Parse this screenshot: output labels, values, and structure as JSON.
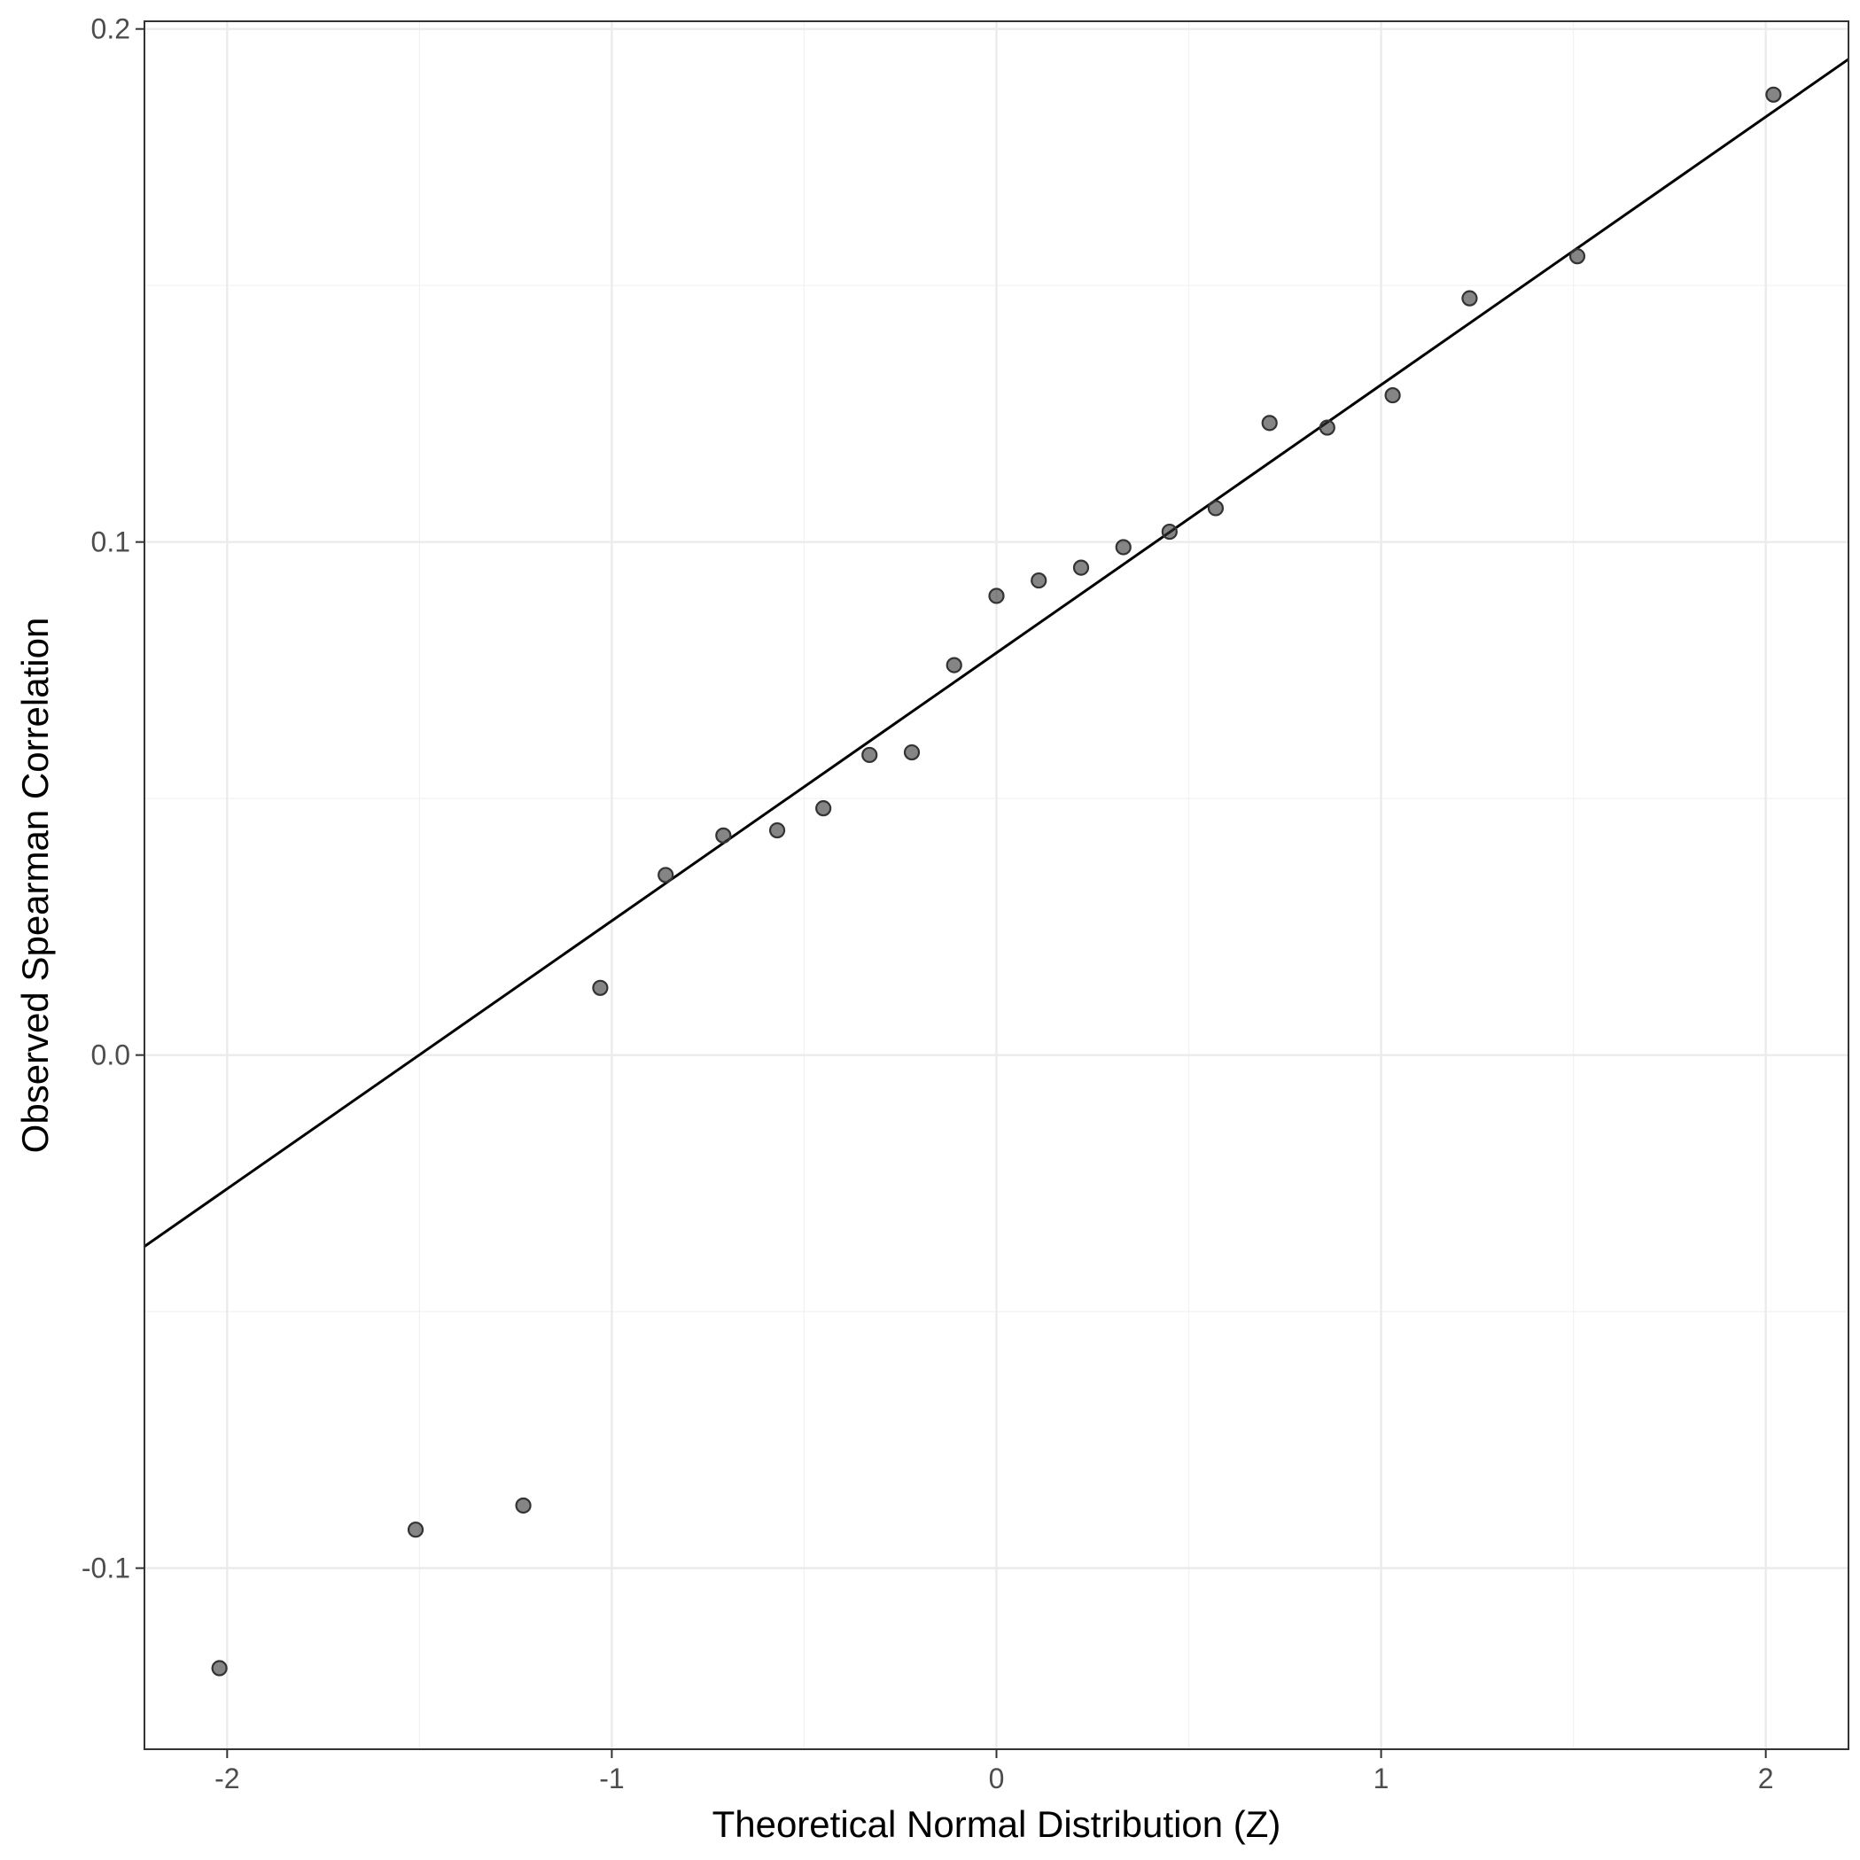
{
  "chart_data": {
    "type": "scatter",
    "xlabel": "Theoretical Normal Distribution (Z)",
    "ylabel": "Observed Spearman Correlation",
    "xlim": [
      -2.215,
      2.215
    ],
    "ylim": [
      -0.1353,
      0.2015
    ],
    "x_ticks": [
      -2,
      -1,
      0,
      1,
      2
    ],
    "x_tick_labels": [
      "-2",
      "-1",
      "0",
      "1",
      "2"
    ],
    "y_ticks": [
      -0.1,
      0.0,
      0.1,
      0.2
    ],
    "y_tick_labels": [
      "-0.1",
      "0.0",
      "0.1",
      "0.2"
    ],
    "x_minor_ticks": [
      -1.5,
      -0.5,
      0.5,
      1.5
    ],
    "y_minor_ticks": [
      -0.05,
      0.05,
      0.15
    ],
    "grid": true,
    "point_color": "#333333",
    "point_fill_opacity": 0.6,
    "line_color": "#000000",
    "series": [
      {
        "type": "scatter",
        "x": [
          -2.02,
          -1.51,
          -1.23,
          -1.03,
          -0.86,
          -0.71,
          -0.57,
          -0.45,
          -0.33,
          -0.22,
          -0.11,
          0.0,
          0.11,
          0.22,
          0.33,
          0.45,
          0.57,
          0.71,
          0.86,
          1.03,
          1.23,
          1.51,
          2.02
        ],
        "y": [
          -0.1195,
          -0.0925,
          -0.0878,
          0.0131,
          0.0351,
          0.0428,
          0.0438,
          0.0481,
          0.0585,
          0.059,
          0.076,
          0.0895,
          0.0925,
          0.095,
          0.099,
          0.102,
          0.1066,
          0.1232,
          0.1223,
          0.1286,
          0.1475,
          0.1557,
          0.1872
        ]
      },
      {
        "type": "line",
        "x": [
          -2.215,
          2.215
        ],
        "y": [
          -0.0373,
          0.1941
        ]
      }
    ]
  }
}
